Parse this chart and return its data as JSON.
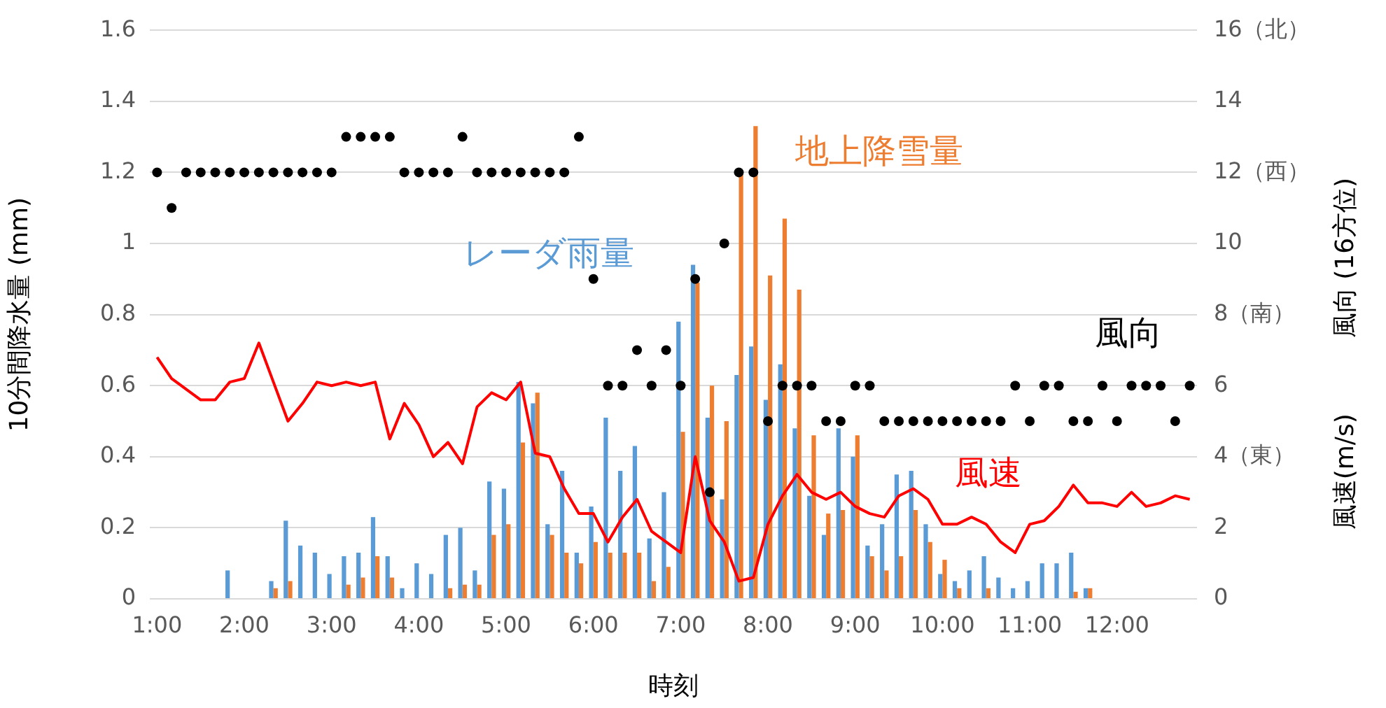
{
  "chart_data": {
    "type": "bar",
    "xlabel": "時刻",
    "ylabel": "10分間降水量 (mm)",
    "y2label": "風速(m/s)　　　風向 (16方位)",
    "categories": [
      "1:00",
      null,
      null,
      null,
      null,
      null,
      "2:00",
      null,
      null,
      null,
      null,
      null,
      "3:00",
      null,
      null,
      null,
      null,
      null,
      "4:00",
      null,
      null,
      null,
      null,
      null,
      "5:00",
      null,
      null,
      null,
      null,
      null,
      "6:00",
      null,
      null,
      null,
      null,
      null,
      "7:00",
      null,
      null,
      null,
      null,
      null,
      "8:00",
      null,
      null,
      null,
      null,
      null,
      "9:00",
      null,
      null,
      null,
      null,
      null,
      "10:00",
      null,
      null,
      null,
      null,
      null,
      "11:00",
      null,
      null,
      null,
      null,
      null,
      "12:00",
      null,
      null,
      null,
      null,
      null
    ],
    "ylim": [
      0,
      1.6
    ],
    "yticks": [
      0,
      0.2,
      0.4,
      0.6,
      0.8,
      1,
      1.2,
      1.4,
      1.6
    ],
    "y2lim": [
      0,
      16
    ],
    "y2ticks": [
      0,
      2,
      {
        "value": 4,
        "label": "4（東）"
      },
      6,
      {
        "value": 8,
        "label": "8（南）"
      },
      10,
      {
        "value": 12,
        "label": "12（西）"
      },
      14,
      {
        "value": 16,
        "label": "16（北）"
      }
    ],
    "grid": "y",
    "legend": false,
    "series": [
      {
        "name": "レーダ雨量",
        "color": "#5b9bd5",
        "values": [
          0,
          0,
          0,
          0,
          0,
          0.08,
          0,
          0,
          0.05,
          0.22,
          0.15,
          0.13,
          0.07,
          0.12,
          0.13,
          0.23,
          0.12,
          0.03,
          0.1,
          0.07,
          0.18,
          0.2,
          0.08,
          0.33,
          0.31,
          0.61,
          0.55,
          0.21,
          0.36,
          0.13,
          0.26,
          0.51,
          0.36,
          0.43,
          0.17,
          0.3,
          0.78,
          0.94,
          0.51,
          0.28,
          0.63,
          0.71,
          0.56,
          0.66,
          0.48,
          0.29,
          0.18,
          0.48,
          0.4,
          0.15,
          0.21,
          0.35,
          0.36,
          0.21,
          0.07,
          0.05,
          0.08,
          0.12,
          0.06,
          0.03,
          0.05,
          0.1,
          0.1,
          0.13,
          0.03,
          0,
          0,
          0,
          0,
          0,
          0,
          0
        ]
      },
      {
        "name": "地上降雪量",
        "color": "#ed7d31",
        "values": [
          0,
          0,
          0,
          0,
          0,
          0,
          0,
          0,
          0.03,
          0.05,
          0,
          0,
          0,
          0.04,
          0.06,
          0.12,
          0.06,
          0,
          0,
          0,
          0.03,
          0.04,
          0.04,
          0.18,
          0.21,
          0.44,
          0.58,
          0.18,
          0.13,
          0.1,
          0.16,
          0.13,
          0.13,
          0.13,
          0.05,
          0.09,
          0.47,
          0.89,
          0.6,
          0.5,
          1.2,
          1.33,
          0.91,
          1.07,
          0.87,
          0.46,
          0.24,
          0.25,
          0.46,
          0.12,
          0.08,
          0.12,
          0.25,
          0.16,
          0.11,
          0.03,
          0,
          0.03,
          0,
          0,
          0,
          0,
          0,
          0.02,
          0.03,
          0,
          0,
          0,
          0,
          0,
          0,
          0
        ]
      },
      {
        "name": "風向",
        "type": "scatter",
        "axis": "y2",
        "marker": "circle",
        "color": "#000000",
        "values": [
          12,
          11,
          12,
          12,
          12,
          12,
          12,
          12,
          12,
          12,
          12,
          12,
          12,
          13,
          13,
          13,
          13,
          12,
          12,
          12,
          12,
          13,
          12,
          12,
          12,
          12,
          12,
          12,
          12,
          13,
          9,
          6,
          6,
          7,
          6,
          7,
          6,
          9,
          3,
          10,
          12,
          12,
          5,
          6,
          6,
          6,
          5,
          5,
          6,
          6,
          5,
          5,
          5,
          5,
          5,
          5,
          5,
          5,
          5,
          6,
          5,
          6,
          6,
          5,
          5,
          6,
          5,
          6,
          6,
          6,
          5,
          6
        ]
      },
      {
        "name": "風速",
        "type": "line",
        "axis": "y2",
        "marker": "none",
        "line_style": "solid",
        "color": "#ff0000",
        "values": [
          6.8,
          6.2,
          5.9,
          5.6,
          5.6,
          6.1,
          6.2,
          7.2,
          6.1,
          5.0,
          5.5,
          6.1,
          6.0,
          6.1,
          6.0,
          6.1,
          4.5,
          5.5,
          4.9,
          4.0,
          4.4,
          3.8,
          5.4,
          5.8,
          5.6,
          6.1,
          4.1,
          4.0,
          3.1,
          2.4,
          2.4,
          1.6,
          2.3,
          2.8,
          1.9,
          1.6,
          1.3,
          4.0,
          2.2,
          1.6,
          0.5,
          0.6,
          2.1,
          2.9,
          3.5,
          3.0,
          2.8,
          3.0,
          2.6,
          2.4,
          2.3,
          2.9,
          3.1,
          2.8,
          2.1,
          2.1,
          2.3,
          2.1,
          1.6,
          1.3,
          2.1,
          2.2,
          2.6,
          3.2,
          2.7,
          2.7,
          2.6,
          3.0,
          2.6,
          2.7,
          2.9,
          2.8
        ]
      }
    ]
  }
}
